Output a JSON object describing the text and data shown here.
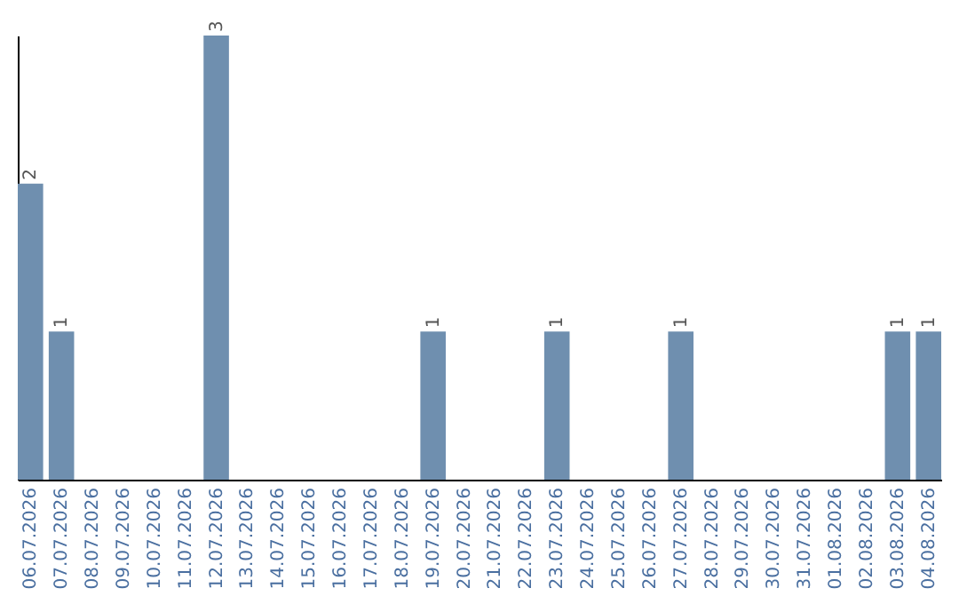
{
  "chart_data": {
    "type": "bar",
    "categories": [
      "06.07.2026",
      "07.07.2026",
      "08.07.2026",
      "09.07.2026",
      "10.07.2026",
      "11.07.2026",
      "12.07.2026",
      "13.07.2026",
      "14.07.2026",
      "15.07.2026",
      "16.07.2026",
      "17.07.2026",
      "18.07.2026",
      "19.07.2026",
      "20.07.2026",
      "21.07.2026",
      "22.07.2026",
      "23.07.2026",
      "24.07.2026",
      "25.07.2026",
      "26.07.2026",
      "27.07.2026",
      "28.07.2026",
      "29.07.2026",
      "30.07.2026",
      "31.07.2026",
      "01.08.2026",
      "02.08.2026",
      "03.08.2026",
      "04.08.2026"
    ],
    "values": [
      2,
      1,
      0,
      0,
      0,
      0,
      3,
      0,
      0,
      0,
      0,
      0,
      0,
      1,
      0,
      0,
      0,
      1,
      0,
      0,
      0,
      1,
      0,
      0,
      0,
      0,
      0,
      0,
      1,
      1
    ],
    "value_labels": [
      "2",
      "1",
      null,
      null,
      null,
      null,
      "3",
      null,
      null,
      null,
      null,
      null,
      null,
      "1",
      null,
      null,
      null,
      "1",
      null,
      null,
      null,
      "1",
      null,
      null,
      null,
      null,
      null,
      null,
      "1",
      "1"
    ],
    "color": "#6f8faf"
  }
}
